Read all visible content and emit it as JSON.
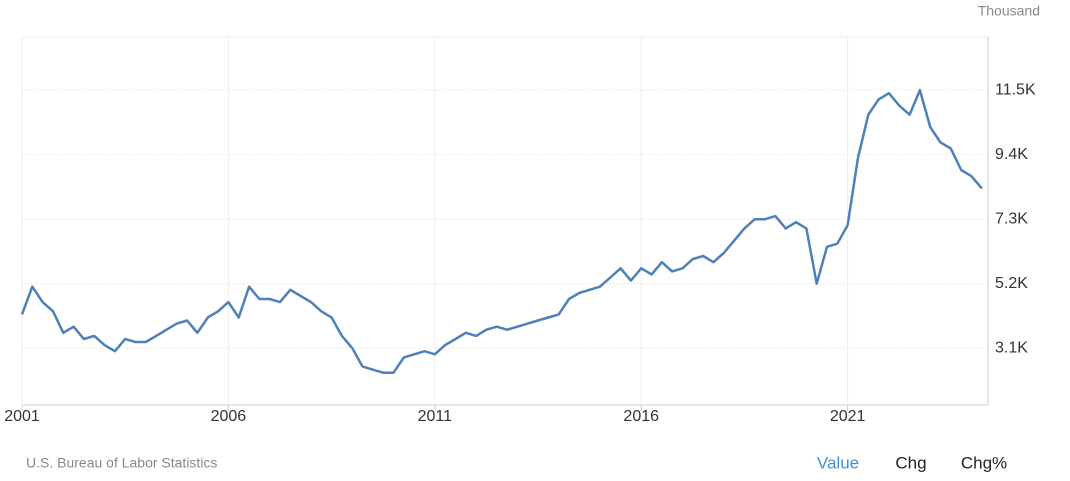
{
  "chart_data": {
    "type": "line",
    "unit_label": "Thousand",
    "source": "U.S. Bureau of Labor Statistics",
    "buttons": [
      "Value",
      "Chg",
      "Chg%"
    ],
    "color": "#4e80b9",
    "x": [
      2001,
      2001.25,
      2001.5,
      2001.75,
      2002,
      2002.25,
      2002.5,
      2002.75,
      2003,
      2003.25,
      2003.5,
      2003.75,
      2004,
      2004.25,
      2004.5,
      2004.75,
      2005,
      2005.25,
      2005.5,
      2005.75,
      2006,
      2006.25,
      2006.5,
      2006.75,
      2007,
      2007.25,
      2007.5,
      2007.75,
      2008,
      2008.25,
      2008.5,
      2008.75,
      2009,
      2009.25,
      2009.5,
      2009.75,
      2010,
      2010.25,
      2010.5,
      2010.75,
      2011,
      2011.25,
      2011.5,
      2011.75,
      2012,
      2012.25,
      2012.5,
      2012.75,
      2013,
      2013.25,
      2013.5,
      2013.75,
      2014,
      2014.25,
      2014.5,
      2014.75,
      2015,
      2015.25,
      2015.5,
      2015.75,
      2016,
      2016.25,
      2016.5,
      2016.75,
      2017,
      2017.25,
      2017.5,
      2017.75,
      2018,
      2018.25,
      2018.5,
      2018.75,
      2019,
      2019.25,
      2019.5,
      2019.75,
      2020,
      2020.25,
      2020.5,
      2020.75,
      2021,
      2021.25,
      2021.5,
      2021.75,
      2022,
      2022.25,
      2022.5,
      2022.75,
      2023,
      2023.25,
      2023.5,
      2023.75,
      2024,
      2024.25
    ],
    "values": [
      4200,
      5100,
      4600,
      4300,
      3600,
      3800,
      3400,
      3500,
      3200,
      3000,
      3400,
      3300,
      3300,
      3500,
      3700,
      3900,
      4000,
      3600,
      4100,
      4300,
      4600,
      4100,
      5100,
      4700,
      4700,
      4600,
      5000,
      4800,
      4600,
      4300,
      4100,
      3500,
      3100,
      2500,
      2400,
      2300,
      2300,
      2800,
      2900,
      3000,
      2900,
      3200,
      3400,
      3600,
      3500,
      3700,
      3800,
      3700,
      3800,
      3900,
      4000,
      4100,
      4200,
      4700,
      4900,
      5000,
      5100,
      5400,
      5700,
      5300,
      5700,
      5500,
      5900,
      5600,
      5700,
      6000,
      6100,
      5900,
      6200,
      6600,
      7000,
      7300,
      7300,
      7400,
      7000,
      7200,
      7000,
      5200,
      6400,
      6500,
      7100,
      9300,
      10700,
      11200,
      11400,
      11000,
      10700,
      11500,
      10300,
      9800,
      9600,
      8900,
      8700,
      8300
    ],
    "xlim": [
      2001,
      2024.4
    ],
    "ylim": [
      1250,
      13230
    ],
    "xticks": [
      2001,
      2006,
      2011,
      2016,
      2021
    ],
    "yticks": [
      {
        "value": 3100,
        "label": "3.1K"
      },
      {
        "value": 5200,
        "label": "5.2K"
      },
      {
        "value": 7300,
        "label": "7.3K"
      },
      {
        "value": 9400,
        "label": "9.4K"
      },
      {
        "value": 11500,
        "label": "11.5K"
      }
    ],
    "grid": true
  }
}
